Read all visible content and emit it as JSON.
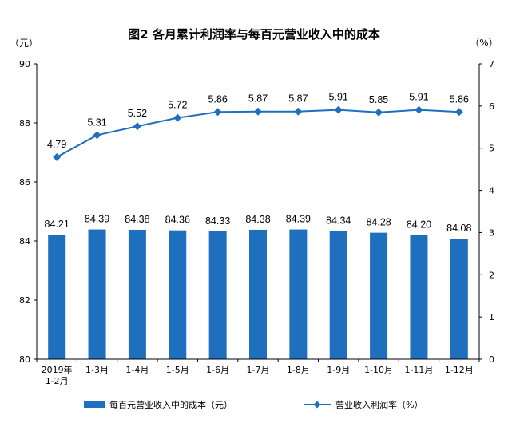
{
  "chart_data": {
    "type": "bar",
    "title": "图2  各月累计利润率与每百元营业收入中的成本",
    "categories": [
      [
        "2019年",
        "1-2月"
      ],
      [
        "1-3月"
      ],
      [
        "1-4月"
      ],
      [
        "1-5月"
      ],
      [
        "1-6月"
      ],
      [
        "1-7月"
      ],
      [
        "1-8月"
      ],
      [
        "1-9月"
      ],
      [
        "1-10月"
      ],
      [
        "1-11月"
      ],
      [
        "1-12月"
      ]
    ],
    "y_left": {
      "unit_label": "（元）",
      "ylim": [
        80,
        90
      ],
      "ticks": [
        "80",
        "82",
        "84",
        "86",
        "88",
        "90"
      ]
    },
    "y_right": {
      "unit_label": "（%）",
      "ylim": [
        0,
        7
      ],
      "ticks": [
        "0",
        "1",
        "2",
        "3",
        "4",
        "5",
        "6",
        "7"
      ]
    },
    "series": [
      {
        "name": "每百元营业收入中的成本（元）",
        "type": "bar",
        "axis": "left",
        "color": "#1f6fbf",
        "values": [
          84.21,
          84.39,
          84.38,
          84.36,
          84.33,
          84.38,
          84.39,
          84.34,
          84.28,
          84.2,
          84.08
        ],
        "labels": [
          "84.21",
          "84.39",
          "84.38",
          "84.36",
          "84.33",
          "84.38",
          "84.39",
          "84.34",
          "84.28",
          "84.20",
          "84.08"
        ]
      },
      {
        "name": "营业收入利润率（%）",
        "type": "line",
        "axis": "right",
        "color": "#1f6fbf",
        "values": [
          4.79,
          5.31,
          5.52,
          5.72,
          5.86,
          5.87,
          5.87,
          5.91,
          5.85,
          5.91,
          5.86
        ],
        "labels": [
          "4.79",
          "5.31",
          "5.52",
          "5.72",
          "5.86",
          "5.87",
          "5.87",
          "5.91",
          "5.85",
          "5.91",
          "5.86"
        ]
      }
    ],
    "grid": false,
    "legend": "bottom"
  }
}
